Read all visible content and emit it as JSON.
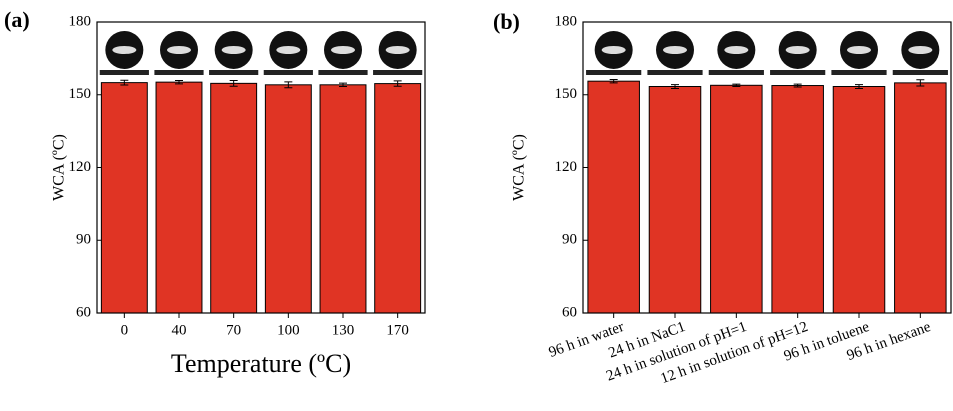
{
  "chart_data": [
    {
      "type": "bar",
      "label": "(a)",
      "ylabel": "WCA (ºC)",
      "xlabel": "Temperature (ºC)",
      "categories": [
        "0",
        "40",
        "70",
        "100",
        "130",
        "170"
      ],
      "values": [
        155.0,
        155.2,
        154.7,
        154.1,
        154.1,
        154.6
      ],
      "errors": [
        1.0,
        0.7,
        1.2,
        1.2,
        0.7,
        1.1
      ],
      "color": "#e03424",
      "ylim": [
        60,
        180
      ],
      "yticks": [
        60,
        90,
        120,
        150,
        180
      ]
    },
    {
      "type": "bar",
      "label": "(b)",
      "ylabel": "WCA (ºC)",
      "categories": [
        "96 h in water",
        "24 h in NaC1",
        "24 h in solution of pH=1",
        "12 h in solution of pH=12",
        "96 h in toluene",
        "96 h in hexane"
      ],
      "values": [
        155.6,
        153.4,
        153.9,
        153.8,
        153.4,
        154.9
      ],
      "errors": [
        0.7,
        0.8,
        0.5,
        0.6,
        0.8,
        1.3
      ],
      "color": "#e03424",
      "ylim": [
        60,
        180
      ],
      "yticks": [
        60,
        90,
        120,
        150,
        180
      ]
    }
  ]
}
